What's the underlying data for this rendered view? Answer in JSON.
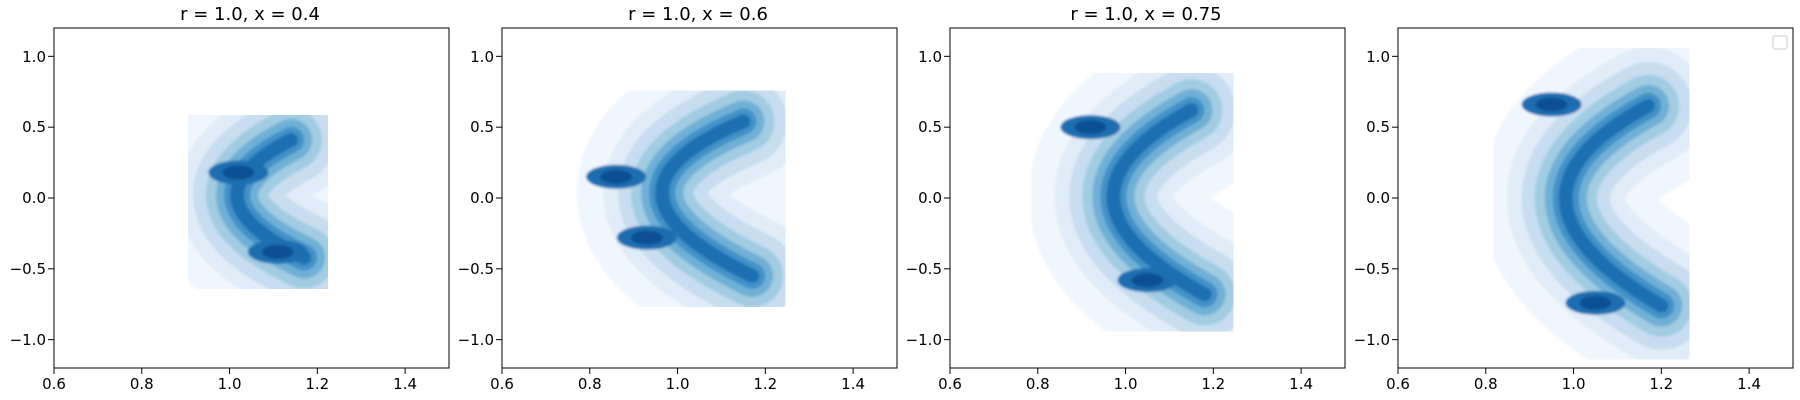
{
  "chart_data": [
    {
      "type": "contour",
      "title": "r = 1.0, x = 0.4",
      "xlim": [
        0.6,
        1.5
      ],
      "ylim": [
        -1.2,
        1.2
      ],
      "xticks": [
        0.6,
        0.8,
        1.0,
        1.2,
        1.4
      ],
      "yticks": [
        -1.0,
        -0.5,
        0.0,
        0.5,
        1.0
      ],
      "xtick_labels": [
        "0.6",
        "0.8",
        "1.0",
        "1.2",
        "1.4"
      ],
      "ytick_labels": [
        "−1.0",
        "−0.5",
        "0.0",
        "0.5",
        "1.0"
      ],
      "legend": false,
      "density_curve": {
        "apex_x": 0.93,
        "apex_y": 0.0,
        "upper_tip": [
          1.14,
          0.41
        ],
        "lower_tip": [
          1.17,
          -0.42
        ]
      },
      "peaks": [
        [
          1.02,
          0.18
        ],
        [
          1.11,
          -0.38
        ]
      ]
    },
    {
      "type": "contour",
      "title": "r = 1.0, x = 0.6",
      "xlim": [
        0.6,
        1.5
      ],
      "ylim": [
        -1.2,
        1.2
      ],
      "xticks": [
        0.6,
        0.8,
        1.0,
        1.2,
        1.4
      ],
      "yticks": [
        -1.0,
        -0.5,
        0.0,
        0.5,
        1.0
      ],
      "xtick_labels": [
        "0.6",
        "0.8",
        "1.0",
        "1.2",
        "1.4"
      ],
      "ytick_labels": [
        "−1.0",
        "−0.5",
        "0.0",
        "0.5",
        "1.0"
      ],
      "legend": false,
      "density_curve": {
        "apex_x": 0.82,
        "apex_y": 0.05,
        "upper_tip": [
          1.15,
          0.54
        ],
        "lower_tip": [
          1.17,
          -0.55
        ]
      },
      "peaks": [
        [
          0.86,
          0.15
        ],
        [
          0.93,
          -0.28
        ]
      ]
    },
    {
      "type": "contour",
      "title": "r = 1.0, x = 0.75",
      "xlim": [
        0.6,
        1.5
      ],
      "ylim": [
        -1.2,
        1.2
      ],
      "xticks": [
        0.6,
        0.8,
        1.0,
        1.2,
        1.4
      ],
      "yticks": [
        -1.0,
        -0.5,
        0.0,
        0.5,
        1.0
      ],
      "xtick_labels": [
        "0.6",
        "0.8",
        "1.0",
        "1.2",
        "1.4"
      ],
      "ytick_labels": [
        "−1.0",
        "−0.5",
        "0.0",
        "0.5",
        "1.0"
      ],
      "legend": false,
      "density_curve": {
        "apex_x": 0.83,
        "apex_y": 0.0,
        "upper_tip": [
          1.15,
          0.62
        ],
        "lower_tip": [
          1.18,
          -0.68
        ]
      },
      "peaks": [
        [
          0.92,
          0.5
        ],
        [
          1.05,
          -0.58
        ]
      ]
    },
    {
      "type": "contour",
      "title": "",
      "xlim": [
        0.6,
        1.5
      ],
      "ylim": [
        -1.2,
        1.2
      ],
      "xticks": [
        0.6,
        0.8,
        1.0,
        1.2,
        1.4
      ],
      "yticks": [
        -1.0,
        -0.5,
        0.0,
        0.5,
        1.0
      ],
      "xtick_labels": [
        "0.6",
        "0.8",
        "1.0",
        "1.2",
        "1.4"
      ],
      "ytick_labels": [
        "−1.0",
        "−0.5",
        "0.0",
        "0.5",
        "1.0"
      ],
      "legend": true,
      "legend_position": "upper right",
      "density_curve": {
        "apex_x": 0.83,
        "apex_y": 0.0,
        "upper_tip": [
          1.17,
          0.65
        ],
        "lower_tip": [
          1.2,
          -0.76
        ]
      },
      "peaks": [
        [
          0.95,
          0.66
        ],
        [
          1.05,
          -0.74
        ]
      ]
    }
  ],
  "colormap": [
    "#f0f6fd",
    "#deebf7",
    "#c6dbef",
    "#9ecae1",
    "#6baed6",
    "#3f8fc6",
    "#1c6eb0",
    "#0b4f93"
  ]
}
